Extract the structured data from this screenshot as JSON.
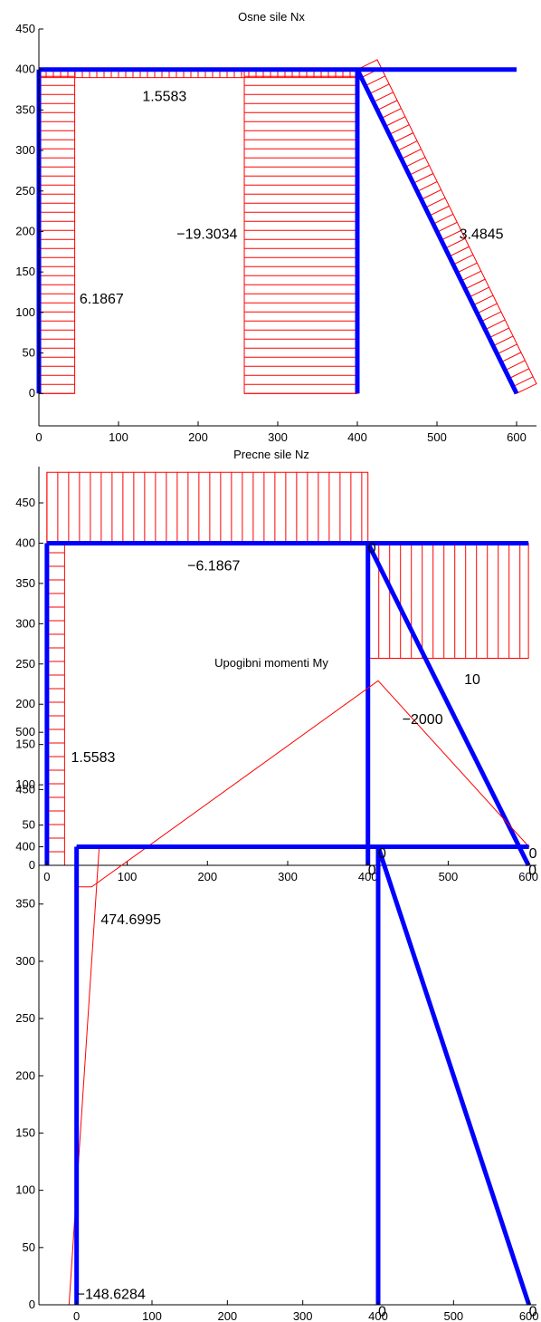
{
  "colors": {
    "frame": "#0000ff",
    "diagram": "#ff0000",
    "axis": "#000000",
    "background": "#ffffff"
  },
  "chart_data": [
    {
      "type": "line",
      "title": "Osne sile Nx",
      "xlim": [
        0,
        625
      ],
      "ylim": [
        -40,
        450
      ],
      "xticks": [
        0,
        100,
        200,
        300,
        400,
        500,
        600
      ],
      "yticks": [
        0,
        50,
        100,
        150,
        200,
        250,
        300,
        350,
        400,
        450
      ],
      "grid": false,
      "frame": [
        {
          "x": [
            0,
            0
          ],
          "y": [
            0,
            400
          ]
        },
        {
          "x": [
            0,
            600
          ],
          "y": [
            400,
            400
          ]
        },
        {
          "x": [
            400,
            400
          ],
          "y": [
            0,
            400
          ]
        },
        {
          "x": [
            400,
            600
          ],
          "y": [
            400,
            0
          ]
        }
      ],
      "diagrams": [
        {
          "value": 6.1867,
          "polygon": [
            [
              0,
              0
            ],
            [
              0,
              400
            ],
            [
              45,
              400
            ],
            [
              45,
              0
            ]
          ],
          "hatch_axis": "h",
          "hatch_step": 10
        },
        {
          "value": 1.5583,
          "polygon": [
            [
              0,
              400
            ],
            [
              400,
              400
            ],
            [
              400,
              390
            ],
            [
              0,
              390
            ]
          ],
          "hatch_axis": "v",
          "hatch_step": 8
        },
        {
          "value": -19.3034,
          "polygon": [
            [
              400,
              0
            ],
            [
              400,
              400
            ],
            [
              258,
              400
            ],
            [
              258,
              0
            ]
          ],
          "hatch_axis": "h",
          "hatch_step": 10
        },
        {
          "value": 3.4845,
          "polygon": [
            [
              400,
              400
            ],
            [
              600,
              0
            ],
            [
              625,
              12
            ],
            [
              425,
              412
            ]
          ],
          "hatch_axis": "perp",
          "hatch_step": 10
        }
      ],
      "annotations": [
        {
          "text": "1.5583",
          "x": 130,
          "y": 368
        },
        {
          "text": "−19.3034",
          "x": 173,
          "y": 198
        },
        {
          "text": "3.4845",
          "x": 528,
          "y": 198
        },
        {
          "text": "6.1867",
          "x": 51,
          "y": 118
        }
      ]
    },
    {
      "type": "line",
      "title": "Precne sile Nz",
      "xlim": [
        -10,
        610
      ],
      "ylim": [
        0,
        495
      ],
      "xticks": [
        0,
        100,
        200,
        300,
        400,
        500,
        600
      ],
      "yticks": [
        0,
        50,
        100,
        150,
        200,
        250,
        300,
        350,
        400,
        450
      ],
      "grid": false,
      "frame": [
        {
          "x": [
            0,
            0
          ],
          "y": [
            0,
            400
          ]
        },
        {
          "x": [
            0,
            600
          ],
          "y": [
            400,
            400
          ]
        },
        {
          "x": [
            400,
            400
          ],
          "y": [
            0,
            400
          ]
        },
        {
          "x": [
            400,
            600
          ],
          "y": [
            400,
            0
          ]
        }
      ],
      "diagrams": [
        {
          "value": 1.5583,
          "polygon": [
            [
              0,
              0
            ],
            [
              0,
              400
            ],
            [
              22,
              400
            ],
            [
              22,
              0
            ]
          ],
          "hatch_axis": "h",
          "hatch_step": 15
        },
        {
          "value": -6.1867,
          "polygon": [
            [
              0,
              400
            ],
            [
              400,
              400
            ],
            [
              400,
              488
            ],
            [
              0,
              488
            ]
          ],
          "hatch_axis": "v",
          "hatch_step": 12
        },
        {
          "value": 10,
          "polygon": [
            [
              400,
              400
            ],
            [
              600,
              400
            ],
            [
              600,
              257
            ],
            [
              400,
              257
            ]
          ],
          "hatch_axis": "v",
          "hatch_step": 12
        }
      ],
      "annotations": [
        {
          "text": "−6.1867",
          "x": 175,
          "y": 373
        },
        {
          "text": "10",
          "x": 520,
          "y": 232
        },
        {
          "text": "1.5583",
          "x": 30,
          "y": 135
        },
        {
          "text": "0",
          "x": 400,
          "y": 395
        },
        {
          "text": "0",
          "x": 400,
          "y": -5
        },
        {
          "text": "0",
          "x": 600,
          "y": -5
        }
      ]
    },
    {
      "type": "line",
      "title": "Upogibni momenti My",
      "xlim": [
        -50,
        610
      ],
      "ylim": [
        0,
        550
      ],
      "xticks": [
        0,
        100,
        200,
        300,
        400,
        500,
        600
      ],
      "yticks": [
        0,
        50,
        100,
        150,
        200,
        250,
        300,
        350,
        400,
        450,
        500
      ],
      "grid": false,
      "frame": [
        {
          "x": [
            0,
            0
          ],
          "y": [
            0,
            400
          ]
        },
        {
          "x": [
            0,
            600
          ],
          "y": [
            400,
            400
          ]
        },
        {
          "x": [
            400,
            400
          ],
          "y": [
            0,
            400
          ]
        },
        {
          "x": [
            400,
            600
          ],
          "y": [
            400,
            0
          ]
        }
      ],
      "diagrams": [
        {
          "value": 474.6995,
          "polygon": [
            [
              0,
              400
            ],
            [
              0,
              0
            ],
            [
              -10,
              0
            ],
            [
              30,
              400
            ]
          ],
          "hatch_axis": "h",
          "hatch_step": 16
        },
        {
          "value": -2000,
          "polygon": [
            [
              0,
              365
            ],
            [
              0,
              400
            ],
            [
              600,
              400
            ],
            [
              400,
              545
            ],
            [
              20,
              365
            ]
          ],
          "hatch_axis": "v",
          "hatch_step": 14
        }
      ],
      "annotations": [
        {
          "text": "−2000",
          "x": 432,
          "y": 512
        },
        {
          "text": "474.6995",
          "x": 32,
          "y": 337
        },
        {
          "text": "−148.6284",
          "x": 0,
          "y": 10
        },
        {
          "text": "0",
          "x": 400,
          "y": 395
        },
        {
          "text": "0",
          "x": 600,
          "y": 395
        },
        {
          "text": "0",
          "x": 400,
          "y": -5
        },
        {
          "text": "0",
          "x": 600,
          "y": -5
        }
      ]
    }
  ]
}
